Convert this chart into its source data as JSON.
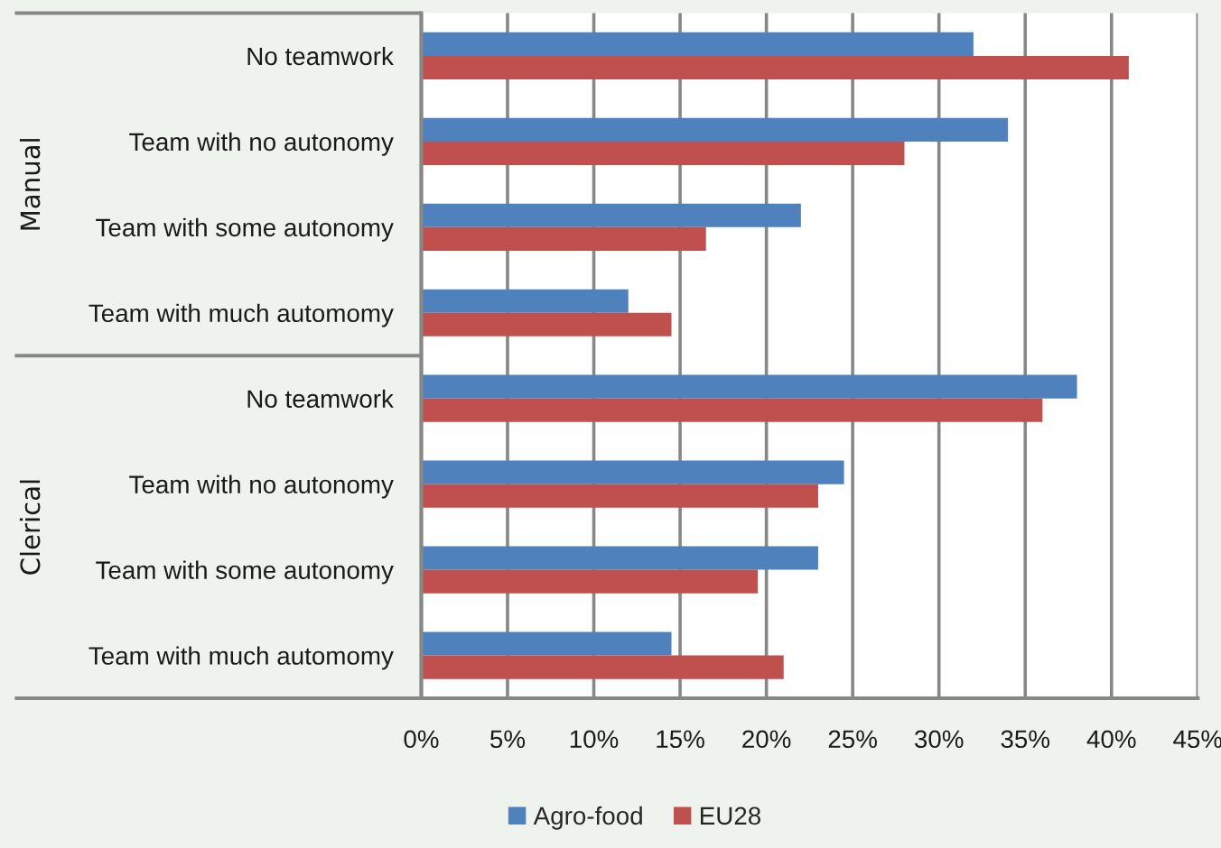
{
  "chart_data": {
    "type": "bar",
    "orientation": "horizontal",
    "categories": [
      "No teamwork",
      "Team with no autonomy",
      "Team with some autonomy",
      "Team with much automomy",
      "No teamwork",
      "Team with no autonomy",
      "Team with some autonomy",
      "Team with much automomy"
    ],
    "series": [
      {
        "name": "Agro-food",
        "color": "#4f81bd",
        "values": [
          32,
          34,
          22,
          12,
          38,
          24.5,
          23,
          14.5
        ]
      },
      {
        "name": "EU28",
        "color": "#c0504d",
        "values": [
          41,
          28,
          16.5,
          14.5,
          36,
          23,
          19.5,
          21
        ]
      }
    ],
    "xlim": [
      0,
      45
    ],
    "xticks": [
      {
        "value": 0,
        "label": "0%"
      },
      {
        "value": 5,
        "label": "5%"
      },
      {
        "value": 10,
        "label": "10%"
      },
      {
        "value": 15,
        "label": "15%"
      },
      {
        "value": 20,
        "label": "20%"
      },
      {
        "value": 25,
        "label": "25%"
      },
      {
        "value": 30,
        "label": "30%"
      },
      {
        "value": 35,
        "label": "35%"
      },
      {
        "value": 40,
        "label": "40%"
      },
      {
        "value": 45,
        "label": "45%"
      }
    ],
    "grid": "x",
    "legend": "bottom",
    "annotations": [
      "Manual",
      "Clerical"
    ]
  }
}
